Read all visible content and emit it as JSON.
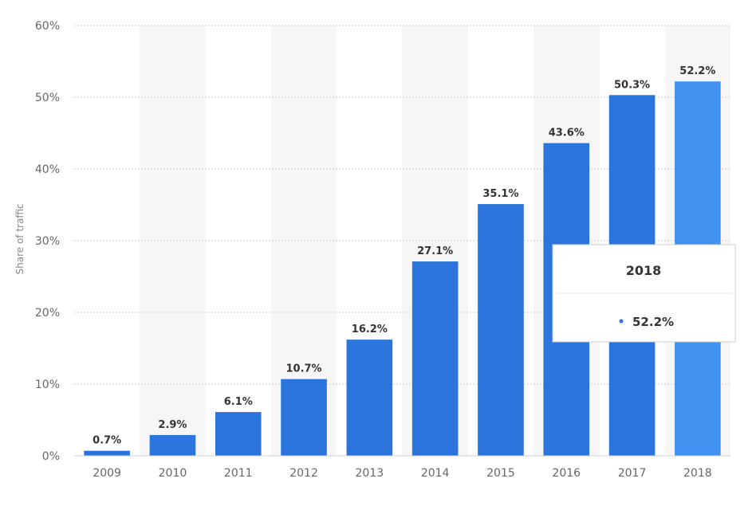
{
  "chart_data": {
    "type": "bar",
    "categories": [
      "2009",
      "2010",
      "2011",
      "2012",
      "2013",
      "2014",
      "2015",
      "2016",
      "2017",
      "2018"
    ],
    "values": [
      0.7,
      2.9,
      6.1,
      10.7,
      16.2,
      27.1,
      35.1,
      43.6,
      50.3,
      52.2
    ],
    "data_labels": [
      "0.7%",
      "2.9%",
      "6.1%",
      "10.7%",
      "16.2%",
      "27.1%",
      "35.1%",
      "43.6%",
      "50.3%",
      "52.2%"
    ],
    "ylabel": "Share of traffic",
    "ylim": [
      0,
      60
    ],
    "yticks": [
      0,
      10,
      20,
      30,
      40,
      50,
      60
    ],
    "ytick_labels": [
      "0%",
      "10%",
      "20%",
      "30%",
      "40%",
      "50%",
      "60%"
    ],
    "grid": true,
    "bar_color": "#2a74db",
    "highlight_color": "#4191f0",
    "highlight_index": 9,
    "tooltip": {
      "title": "2018",
      "value": "52.2%"
    }
  }
}
